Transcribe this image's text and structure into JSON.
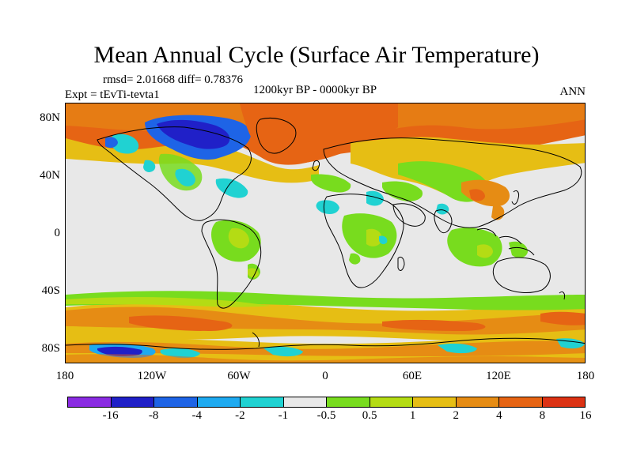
{
  "figure": {
    "title": "Mean Annual Cycle (Surface Air Temperature)",
    "stats": "rmsd= 2.01668 diff= 0.78376",
    "experiment": "Expt = tEvTi-tevta1",
    "period": "1200kyr BP - 0000kyr BP",
    "season": "ANN"
  },
  "axes": {
    "y_ticks": [
      "80N",
      "40N",
      "0",
      "40S",
      "80S"
    ],
    "x_ticks": [
      "180",
      "120W",
      "60W",
      "0",
      "60E",
      "120E",
      "180"
    ]
  },
  "colorbar": {
    "colors": [
      "#8a2be2",
      "#2020c8",
      "#1e64e6",
      "#1eaaf0",
      "#20d2d2",
      "#e8e8e8",
      "#78dc1e",
      "#b4dc14",
      "#e6be14",
      "#e68c14",
      "#e66414",
      "#dc3214"
    ],
    "labels": [
      "-16",
      "-8",
      "-4",
      "-2",
      "-1",
      "-0.5",
      "0.5",
      "1",
      "2",
      "4",
      "8",
      "16"
    ]
  }
}
